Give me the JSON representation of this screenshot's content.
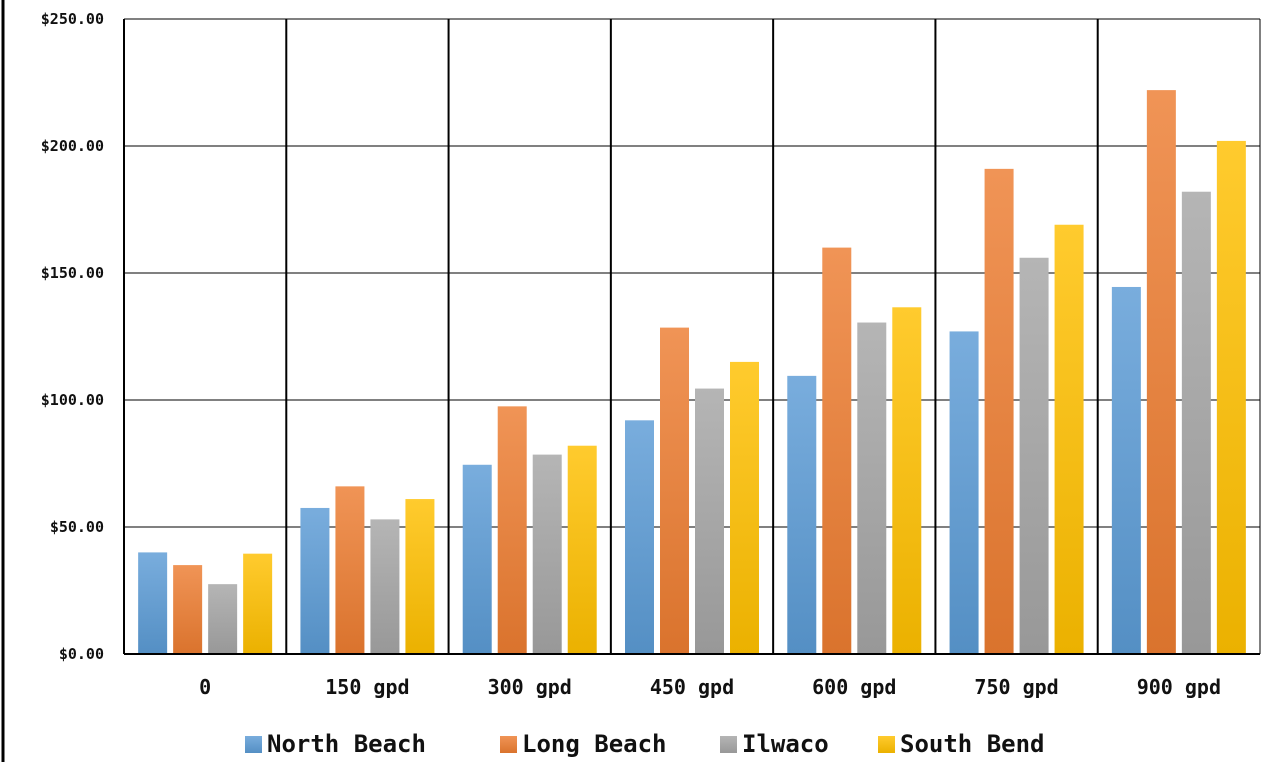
{
  "chart_data": {
    "type": "bar",
    "categories": [
      "0",
      "150 gpd",
      "300 gpd",
      "450 gpd",
      "600 gpd",
      "750 gpd",
      "900 gpd"
    ],
    "series": [
      {
        "name": "North Beach",
        "color": "#5B9BD5",
        "values": [
          40,
          57.5,
          74.5,
          92,
          109.5,
          127,
          144.5
        ]
      },
      {
        "name": "Long Beach",
        "color": "#ED7D31",
        "values": [
          35,
          66,
          97.5,
          128.5,
          160,
          191,
          222
        ]
      },
      {
        "name": "Ilwaco",
        "color": "#A5A5A5",
        "values": [
          27.5,
          53,
          78.5,
          104.5,
          130.5,
          156,
          182
        ]
      },
      {
        "name": "South Bend",
        "color": "#FFC000",
        "values": [
          39.5,
          61,
          82,
          115,
          136.5,
          169,
          202
        ]
      }
    ],
    "yticks": [
      "$0.00",
      "$50.00",
      "$100.00",
      "$150.00",
      "$200.00",
      "$250.00"
    ],
    "ylim": [
      0,
      250
    ],
    "grid": true,
    "legend": "bottom"
  }
}
